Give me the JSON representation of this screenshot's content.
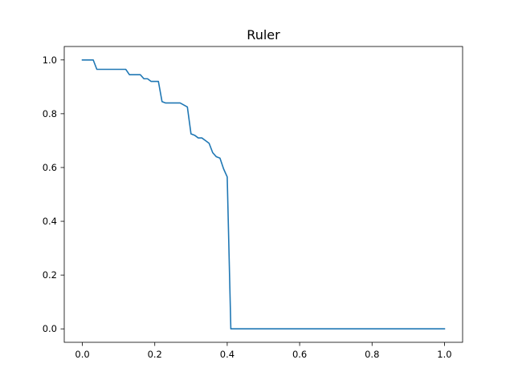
{
  "chart_data": {
    "type": "line",
    "title": "Ruler",
    "xlabel": "",
    "ylabel": "",
    "xlim": [
      -0.05,
      1.05
    ],
    "ylim": [
      -0.05,
      1.05
    ],
    "grid": false,
    "x_ticks": [
      0.0,
      0.2,
      0.4,
      0.6,
      0.8,
      1.0
    ],
    "x_tick_labels": [
      "0.0",
      "0.2",
      "0.4",
      "0.6",
      "0.8",
      "1.0"
    ],
    "y_ticks": [
      0.0,
      0.2,
      0.4,
      0.6,
      0.8,
      1.0
    ],
    "y_tick_labels": [
      "0.0",
      "0.2",
      "0.4",
      "0.6",
      "0.8",
      "1.0"
    ],
    "series": [
      {
        "color": "#1f77b4",
        "x": [
          0.0,
          0.03,
          0.04,
          0.11,
          0.12,
          0.13,
          0.16,
          0.17,
          0.18,
          0.19,
          0.21,
          0.22,
          0.23,
          0.27,
          0.29,
          0.3,
          0.31,
          0.32,
          0.33,
          0.34,
          0.35,
          0.36,
          0.37,
          0.38,
          0.39,
          0.4,
          0.41,
          0.42,
          1.0
        ],
        "y": [
          1.0,
          1.0,
          0.965,
          0.965,
          0.965,
          0.945,
          0.945,
          0.93,
          0.93,
          0.92,
          0.92,
          0.845,
          0.84,
          0.84,
          0.825,
          0.725,
          0.72,
          0.71,
          0.71,
          0.7,
          0.69,
          0.655,
          0.64,
          0.635,
          0.595,
          0.565,
          0.0,
          0.0,
          0.0
        ]
      }
    ]
  }
}
